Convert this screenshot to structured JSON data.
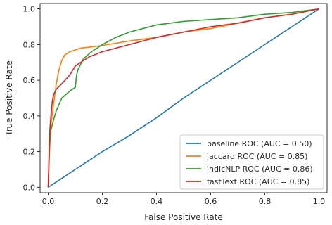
{
  "chart_data": {
    "type": "line",
    "title": "",
    "xlabel": "False Positive Rate",
    "ylabel": "True Positive Rate",
    "xlim": [
      -0.03,
      1.03
    ],
    "ylim": [
      -0.03,
      1.03
    ],
    "xticks": [
      0.0,
      0.2,
      0.4,
      0.6,
      0.8,
      1.0
    ],
    "yticks": [
      0.0,
      0.2,
      0.4,
      0.6,
      0.8,
      1.0
    ],
    "xtick_labels": [
      "0.0",
      "0.2",
      "0.4",
      "0.6",
      "0.8",
      "1.0"
    ],
    "ytick_labels": [
      "0.0",
      "0.2",
      "0.4",
      "0.6",
      "0.8",
      "1.0"
    ],
    "grid": false,
    "legend": "lower-right",
    "series": [
      {
        "name": "baseline ROC (AUC = 0.50)",
        "color": "#1f77b4",
        "x": [
          0.0,
          0.02,
          0.05,
          0.1,
          0.15,
          0.2,
          0.3,
          0.4,
          0.5,
          0.6,
          0.7,
          0.8,
          0.9,
          0.95,
          1.0
        ],
        "y": [
          0.0,
          0.02,
          0.05,
          0.1,
          0.15,
          0.2,
          0.29,
          0.39,
          0.5,
          0.6,
          0.7,
          0.8,
          0.9,
          0.95,
          1.0
        ]
      },
      {
        "name": "jaccard ROC (AUC = 0.85)",
        "color": "#ff7f0e",
        "x": [
          0.0,
          0.005,
          0.01,
          0.02,
          0.03,
          0.04,
          0.05,
          0.06,
          0.08,
          0.1,
          0.12,
          0.15,
          0.2,
          0.3,
          0.4,
          0.5,
          0.6,
          0.7,
          0.8,
          0.9,
          1.0
        ],
        "y": [
          0.0,
          0.2,
          0.35,
          0.47,
          0.58,
          0.66,
          0.71,
          0.74,
          0.76,
          0.77,
          0.78,
          0.785,
          0.795,
          0.82,
          0.84,
          0.87,
          0.89,
          0.92,
          0.95,
          0.97,
          1.0
        ]
      },
      {
        "name": "indicNLP ROC (AUC = 0.86)",
        "color": "#2ca02c",
        "x": [
          0.0,
          0.005,
          0.01,
          0.02,
          0.03,
          0.05,
          0.08,
          0.1,
          0.105,
          0.11,
          0.13,
          0.16,
          0.2,
          0.25,
          0.3,
          0.4,
          0.5,
          0.6,
          0.7,
          0.8,
          0.9,
          1.0
        ],
        "y": [
          0.0,
          0.25,
          0.32,
          0.38,
          0.43,
          0.5,
          0.54,
          0.56,
          0.63,
          0.66,
          0.72,
          0.76,
          0.8,
          0.84,
          0.87,
          0.91,
          0.93,
          0.94,
          0.95,
          0.97,
          0.98,
          1.0
        ]
      },
      {
        "name": "fastText ROC (AUC = 0.85)",
        "color": "#d62728",
        "x": [
          0.0,
          0.005,
          0.01,
          0.015,
          0.02,
          0.03,
          0.05,
          0.08,
          0.1,
          0.15,
          0.2,
          0.3,
          0.4,
          0.5,
          0.6,
          0.7,
          0.8,
          0.9,
          1.0
        ],
        "y": [
          0.0,
          0.3,
          0.4,
          0.48,
          0.52,
          0.55,
          0.58,
          0.63,
          0.68,
          0.73,
          0.76,
          0.8,
          0.84,
          0.87,
          0.9,
          0.92,
          0.95,
          0.97,
          1.0
        ]
      }
    ]
  }
}
